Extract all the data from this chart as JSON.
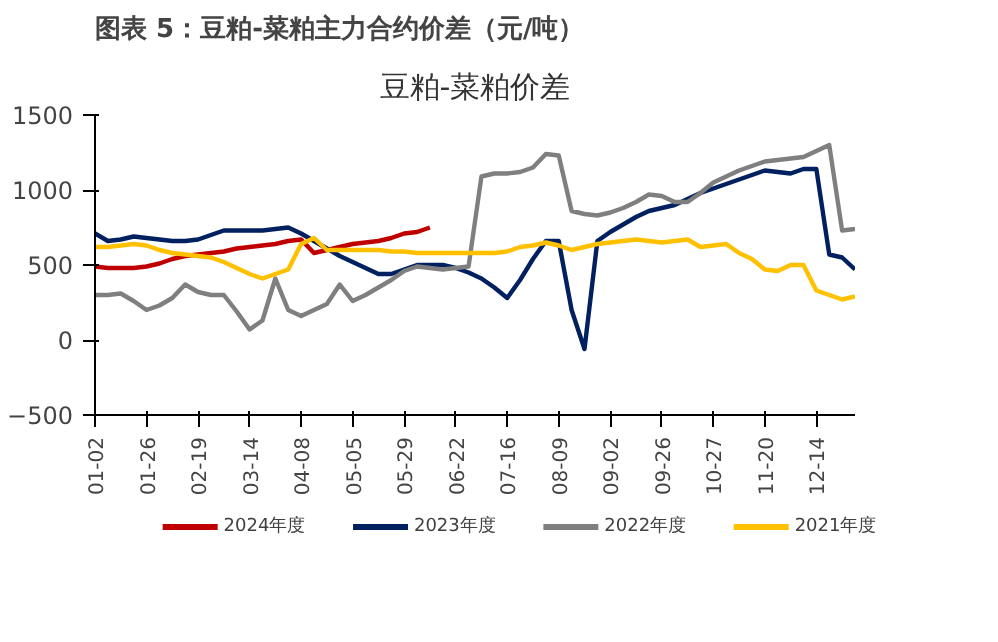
{
  "chart_data": {
    "type": "line",
    "title": "图表 5：豆粕-菜粕主力合约价差（元/吨）",
    "subtitle": "豆粕-菜粕价差",
    "ylim": [
      -500,
      1500
    ],
    "yticks": [
      -500,
      0,
      500,
      1000,
      1500
    ],
    "categories": [
      "01-02",
      null,
      null,
      null,
      "01-26",
      null,
      null,
      null,
      "02-19",
      null,
      null,
      null,
      "03-14",
      null,
      null,
      null,
      "04-08",
      null,
      null,
      null,
      "05-05",
      null,
      null,
      null,
      "05-29",
      null,
      null,
      null,
      "06-22",
      null,
      null,
      null,
      "07-16",
      null,
      null,
      null,
      "08-09",
      null,
      null,
      null,
      "09-02",
      null,
      null,
      null,
      "09-26",
      null,
      null,
      null,
      "10-27",
      null,
      null,
      null,
      "11-20",
      null,
      null,
      null,
      "12-14",
      null,
      null,
      null
    ],
    "grid": false,
    "legend": "bottom",
    "marker": "none",
    "line_style": "solid",
    "series": [
      {
        "name": "2024年度",
        "color": "#c00000",
        "values": [
          490,
          480,
          480,
          480,
          490,
          510,
          540,
          560,
          570,
          580,
          590,
          610,
          620,
          630,
          640,
          660,
          670,
          580,
          600,
          620,
          640,
          650,
          660,
          680,
          710,
          720,
          750,
          null,
          null,
          null,
          null,
          null,
          null,
          null,
          null,
          null,
          null,
          null,
          null,
          null,
          null,
          null,
          null,
          null,
          null,
          null,
          null,
          null,
          null,
          null,
          null,
          null,
          null,
          null,
          null,
          null,
          null,
          null,
          null,
          null
        ]
      },
      {
        "name": "2023年度",
        "color": "#002060",
        "values": [
          710,
          660,
          670,
          690,
          680,
          670,
          660,
          660,
          670,
          700,
          730,
          730,
          730,
          730,
          740,
          750,
          710,
          660,
          610,
          560,
          520,
          480,
          440,
          440,
          470,
          500,
          500,
          500,
          480,
          450,
          410,
          350,
          280,
          400,
          540,
          660,
          660,
          200,
          -60,
          660,
          720,
          770,
          820,
          860,
          880,
          900,
          940,
          980,
          1010,
          1040,
          1070,
          1100,
          1130,
          1120,
          1110,
          1140,
          1140,
          570,
          550,
          470
        ]
      },
      {
        "name": "2022年度",
        "color": "#7f7f7f",
        "values": [
          300,
          300,
          310,
          260,
          200,
          230,
          280,
          370,
          320,
          300,
          300,
          190,
          70,
          130,
          410,
          200,
          160,
          200,
          240,
          370,
          260,
          300,
          350,
          400,
          460,
          490,
          480,
          470,
          480,
          490,
          1090,
          1110,
          1110,
          1120,
          1150,
          1240,
          1230,
          860,
          840,
          830,
          850,
          880,
          920,
          970,
          960,
          920,
          920,
          980,
          1050,
          1090,
          1130,
          1160,
          1190,
          1200,
          1210,
          1220,
          1260,
          1300,
          730,
          740
        ]
      },
      {
        "name": "2021年度",
        "color": "#ffc000",
        "values": [
          620,
          620,
          630,
          640,
          630,
          600,
          580,
          570,
          560,
          550,
          520,
          480,
          440,
          410,
          440,
          470,
          640,
          680,
          600,
          600,
          600,
          600,
          600,
          590,
          590,
          580,
          580,
          580,
          580,
          580,
          580,
          580,
          590,
          620,
          630,
          650,
          630,
          600,
          620,
          640,
          650,
          660,
          670,
          660,
          650,
          660,
          670,
          620,
          630,
          640,
          580,
          540,
          470,
          460,
          500,
          500,
          330,
          300,
          270,
          290
        ]
      }
    ]
  }
}
